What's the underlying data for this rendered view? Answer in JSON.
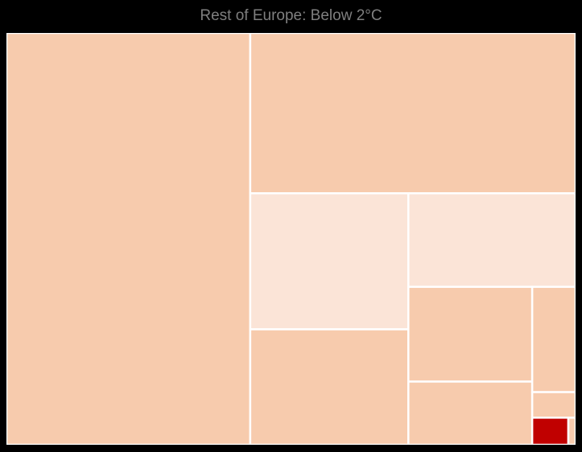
{
  "chart_data": {
    "type": "treemap",
    "title": "Rest of Europe: Below 2°C",
    "legend": "none",
    "colors": {
      "low": "#f7cbad",
      "lighter": "#fbe4d7",
      "high": "#c00000",
      "border": "#ffffff",
      "background": "#000000",
      "title": "#7f7f7f"
    },
    "tiles": [
      {
        "value": 154,
        "color": "#f7cbad"
      },
      {
        "value": 80,
        "color": "#f7cbad"
      },
      {
        "value": 33,
        "color": "#fbe4d7"
      },
      {
        "value": 28,
        "color": "#f7cbad"
      },
      {
        "value": 24,
        "color": "#fbe4d7"
      },
      {
        "value": 18,
        "color": "#f7cbad"
      },
      {
        "value": 12,
        "color": "#f7cbad"
      },
      {
        "value": 7,
        "color": "#f7cbad"
      },
      {
        "value": 1.7,
        "color": "#f7cbad"
      },
      {
        "value": 1.5,
        "color": "#c00000"
      },
      {
        "value": 0.3,
        "color": "#f7cbad"
      }
    ]
  }
}
